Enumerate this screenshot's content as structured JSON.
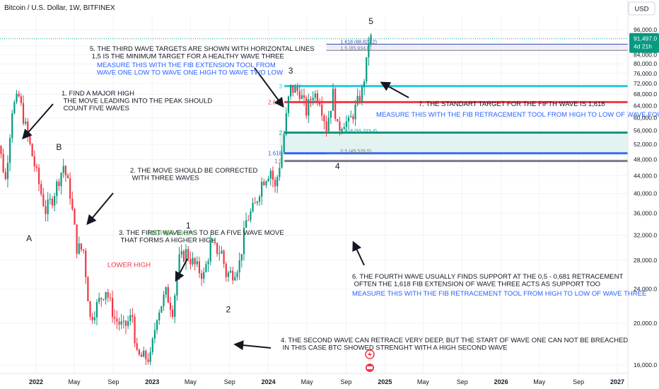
{
  "header": {
    "title": "Bitcoin / U.S. Dollar, 1W, BITFINEX",
    "currency_button": "USD"
  },
  "chart_data": {
    "type": "candlestick",
    "title": "Bitcoin / U.S. Dollar, 1W, BITFINEX",
    "y_scale": "log",
    "ylim": [
      15500,
      100000
    ],
    "y_ticks": [
      {
        "value": 16000,
        "label": "16,000.0"
      },
      {
        "value": 20000,
        "label": "20,000.0"
      },
      {
        "value": 24000,
        "label": "24,000.0"
      },
      {
        "value": 28000,
        "label": "28,000.0"
      },
      {
        "value": 32000,
        "label": "32,000.0"
      },
      {
        "value": 36000,
        "label": "36,000.0"
      },
      {
        "value": 40000,
        "label": "40,000.0"
      },
      {
        "value": 44000,
        "label": "44,000.0"
      },
      {
        "value": 48000,
        "label": "48,000.0"
      },
      {
        "value": 52000,
        "label": "52,000.0"
      },
      {
        "value": 56000,
        "label": "56,000.0"
      },
      {
        "value": 60000,
        "label": "60,000.0"
      },
      {
        "value": 64000,
        "label": "64,000.0"
      },
      {
        "value": 68000,
        "label": "68,000.0"
      },
      {
        "value": 72000,
        "label": "72,000.0"
      },
      {
        "value": 76000,
        "label": "76,000.0"
      },
      {
        "value": 80000,
        "label": "80,000.0"
      },
      {
        "value": 84000,
        "label": "84,000.0"
      },
      {
        "value": 88000,
        "label": "88,000.0"
      },
      {
        "value": 96000,
        "label": "96,000.0"
      }
    ],
    "xlim": [
      "2021-08-15",
      "2027-01-15"
    ],
    "x_ticks": [
      {
        "date": "2022-01-01",
        "label": "2022",
        "bold": true
      },
      {
        "date": "2022-05-01",
        "label": "May",
        "bold": false
      },
      {
        "date": "2022-09-01",
        "label": "Sep",
        "bold": false
      },
      {
        "date": "2023-01-01",
        "label": "2023",
        "bold": true
      },
      {
        "date": "2023-05-01",
        "label": "May",
        "bold": false
      },
      {
        "date": "2023-09-01",
        "label": "Sep",
        "bold": false
      },
      {
        "date": "2024-01-01",
        "label": "2024",
        "bold": true
      },
      {
        "date": "2024-05-01",
        "label": "May",
        "bold": false
      },
      {
        "date": "2024-09-01",
        "label": "Sep",
        "bold": false
      },
      {
        "date": "2025-01-01",
        "label": "2025",
        "bold": true
      },
      {
        "date": "2025-05-01",
        "label": "May",
        "bold": false
      },
      {
        "date": "2025-09-01",
        "label": "Sep",
        "bold": false
      },
      {
        "date": "2026-01-01",
        "label": "2026",
        "bold": true
      },
      {
        "date": "2026-05-01",
        "label": "May",
        "bold": false
      },
      {
        "date": "2026-09-01",
        "label": "Sep",
        "bold": false
      },
      {
        "date": "2027-01-01",
        "label": "2027",
        "bold": true
      }
    ],
    "price_anchors": [
      [
        "2021-08-16",
        47000
      ],
      [
        "2021-09-06",
        52000
      ],
      [
        "2021-09-27",
        43000
      ],
      [
        "2021-10-18",
        63000
      ],
      [
        "2021-11-08",
        67000
      ],
      [
        "2021-11-29",
        57000
      ],
      [
        "2021-12-20",
        49000
      ],
      [
        "2022-01-17",
        40000
      ],
      [
        "2022-01-31",
        36500
      ],
      [
        "2022-02-21",
        39000
      ],
      [
        "2022-03-28",
        46500
      ],
      [
        "2022-04-18",
        40000
      ],
      [
        "2022-05-09",
        30000
      ],
      [
        "2022-05-30",
        29500
      ],
      [
        "2022-06-20",
        20500
      ],
      [
        "2022-07-18",
        22500
      ],
      [
        "2022-08-08",
        24000
      ],
      [
        "2022-09-05",
        20500
      ],
      [
        "2022-10-03",
        19500
      ],
      [
        "2022-10-31",
        20800
      ],
      [
        "2022-11-14",
        16700
      ],
      [
        "2022-12-26",
        16600
      ],
      [
        "2023-01-16",
        21000
      ],
      [
        "2023-02-13",
        23500
      ],
      [
        "2023-03-06",
        21500
      ],
      [
        "2023-03-27",
        28000
      ],
      [
        "2023-04-17",
        29200
      ],
      [
        "2023-05-15",
        27200
      ],
      [
        "2023-06-12",
        25800
      ],
      [
        "2023-07-03",
        30200
      ],
      [
        "2023-08-07",
        29200
      ],
      [
        "2023-08-21",
        26000
      ],
      [
        "2023-09-11",
        26200
      ],
      [
        "2023-10-02",
        27600
      ],
      [
        "2023-10-23",
        34500
      ],
      [
        "2023-11-20",
        37500
      ],
      [
        "2023-12-11",
        42500
      ],
      [
        "2024-01-08",
        45500
      ],
      [
        "2024-01-22",
        41000
      ],
      [
        "2024-02-12",
        50000
      ],
      [
        "2024-03-04",
        66000
      ],
      [
        "2024-03-11",
        70000
      ],
      [
        "2024-04-08",
        69000
      ],
      [
        "2024-04-29",
        62000
      ],
      [
        "2024-05-20",
        68500
      ],
      [
        "2024-06-10",
        66500
      ],
      [
        "2024-07-01",
        57000
      ],
      [
        "2024-07-22",
        68000
      ],
      [
        "2024-08-05",
        56500
      ],
      [
        "2024-08-26",
        59000
      ],
      [
        "2024-09-09",
        58000
      ],
      [
        "2024-09-30",
        63000
      ],
      [
        "2024-10-21",
        69000
      ],
      [
        "2024-11-04",
        80000
      ],
      [
        "2024-11-11",
        90500
      ],
      [
        "2024-11-18",
        91500
      ]
    ],
    "price_labels": {
      "last_price": "91,497.0",
      "countdown": "4d 21h"
    },
    "levels": [
      {
        "label": "1.618 (88,829.2)",
        "price": 88829.2,
        "color": "#3949ab",
        "style": "thin",
        "start": "2024-07-01"
      },
      {
        "label": "1.5 (85,934.0)",
        "price": 85934.0,
        "color": "#787b86",
        "style": "thin",
        "start": "2024-07-01"
      },
      {
        "label": "3",
        "price": 71000,
        "color": "#26c6da",
        "style": "thick",
        "start": "2024-03-01"
      },
      {
        "label": "2.618",
        "price": 65200,
        "color": "#f23645",
        "style": "thick",
        "start": "2024-03-01"
      },
      {
        "label": "2",
        "price": 55400,
        "color": "#089981",
        "style": "thick",
        "start": "2024-03-01"
      },
      {
        "label": "0.618 (55,223.4)",
        "price": 55223.4,
        "color": "#089981",
        "style": "thin",
        "start": "2024-07-01"
      },
      {
        "label": "1.618",
        "price": 49600,
        "color": "#2962ff",
        "style": "thick",
        "start": "2024-03-01"
      },
      {
        "label": "0.5 (49,526.5)",
        "price": 49526.5,
        "color": "#787b86",
        "style": "thin",
        "start": "2024-07-01"
      },
      {
        "label": "1.5",
        "price": 47600,
        "color": "#787b86",
        "style": "thick",
        "start": "2024-03-01"
      }
    ],
    "wave_labels": [
      {
        "text": "A",
        "date": "2021-12-10",
        "price": 31000,
        "color": "#131722"
      },
      {
        "text": "B",
        "date": "2022-03-14",
        "price": 50500,
        "color": "#131722"
      },
      {
        "text": "LOWER HIGH",
        "date": "2022-10-20",
        "price": 27000,
        "color": "#f23645"
      },
      {
        "text": "HIGHER HIGH",
        "date": "2023-02-28",
        "price": 32000,
        "color": "#4caf50"
      },
      {
        "text": "1",
        "date": "2023-04-24",
        "price": 33200,
        "color": "#131722"
      },
      {
        "text": "2",
        "date": "2023-08-28",
        "price": 21200,
        "color": "#131722"
      },
      {
        "text": "3",
        "date": "2024-03-11",
        "price": 76000,
        "color": "#131722"
      },
      {
        "text": "4",
        "date": "2024-08-05",
        "price": 45600,
        "color": "#131722"
      },
      {
        "text": "5",
        "date": "2024-11-18",
        "price": 99000,
        "color": "#131722"
      }
    ],
    "annotations": [
      {
        "lines": [
          "1. FIND A MAJOR HIGH",
          "    THE MOVE LEADING INTO THE PEAK SHOULD",
          "    COUNT FIVE WAVES"
        ],
        "color": "#131722"
      },
      {
        "lines": [
          "2. THE MOVE SHOULD BE CORRECTED",
          "    WITH THREE WAVES"
        ],
        "color": "#131722"
      },
      {
        "lines": [
          "3. THE FIRST WAVE HAS TO BE A FIVE WAVE MOVE",
          "    THAT FORMS A HIGHER HIGH"
        ],
        "color": "#131722"
      },
      {
        "lines": [
          "4. THE SECOND WAVE CAN RETRACE VERY DEEP, BUT THE START OF WAVE ONE CAN NOT BE BREACHED",
          "    IN THIS CASE BTC SHOWED STRENGHT WITH A HIGH SECOND WAVE"
        ],
        "color": "#131722"
      },
      {
        "lines": [
          "5. THE THIRD WAVE TARGETS ARE SHOWN WITH HORIZONTAL LINES",
          "    1,5 IS THE MINIMUM TARGET FOR A HEALTHY WAVE THREE"
        ],
        "color": "#131722"
      },
      {
        "lines": [
          "MEASURE THIS WITH THE FIB EXTENSION TOOL FROM",
          "WAVE ONE LOW TO WAVE ONE HIGH TO WAVE TWO LOW"
        ],
        "color": "#2962ff"
      },
      {
        "lines": [
          "6. THE FOURTH WAVE USUALLY FINDS SUPPORT AT THE 0,5 - 0,681 RETRACEMENT",
          "    OFTEN THE 1,618 FIB EXTENSION OF WAVE THREE ACTS AS SUPPORT TOO"
        ],
        "color": "#131722"
      },
      {
        "lines": [
          "MEASURE THIS WITH THE FIB RETRACEMENT TOOL FROM HIGH TO LOW OF WAVE THREE"
        ],
        "color": "#2962ff"
      },
      {
        "lines": [
          "7. THE STANDART TARGET FOR THE FIFTH WAVE IS 1,618"
        ],
        "color": "#131722"
      },
      {
        "lines": [
          "MEASURE THIS WITH THE FIB RETRACEMENT TOOL FROM HIGH TO LOW OF WAVE FOUR"
        ],
        "color": "#2962ff"
      }
    ],
    "colors": {
      "up": "#089981",
      "down": "#f23645",
      "grid": "#f0f3fa",
      "axis_text": "#131722",
      "price_badge": "#089981",
      "arrow": "#131722"
    }
  }
}
